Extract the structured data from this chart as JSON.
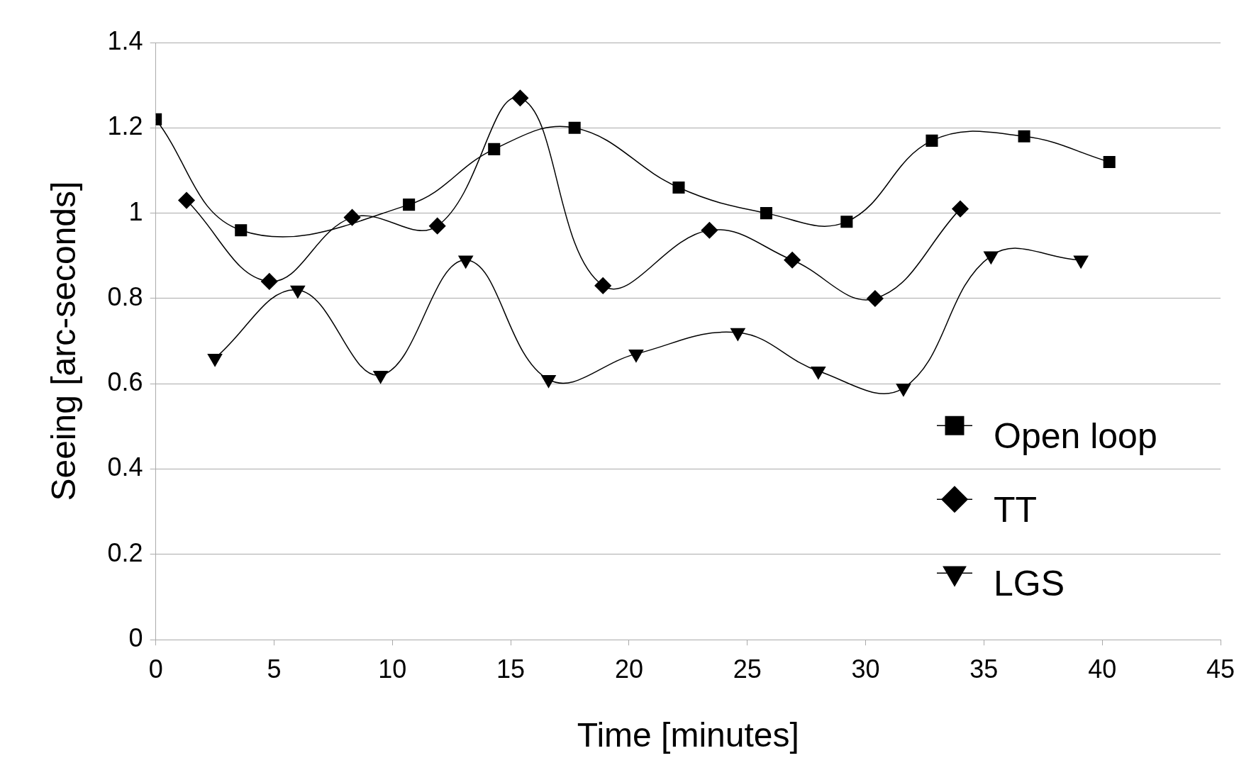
{
  "chart_data": {
    "type": "line",
    "xlabel": "Time [minutes]",
    "ylabel": "Seeing [arc-seconds]",
    "xlim": [
      0,
      45
    ],
    "xticks": [
      0,
      5,
      10,
      15,
      20,
      25,
      30,
      35,
      40,
      45
    ],
    "ylim": [
      0,
      1.4
    ],
    "yticks": [
      0,
      0.2,
      0.4,
      0.6,
      0.8,
      1,
      1.2,
      1.4
    ],
    "grid": "y",
    "legend": "bottom right",
    "series": [
      {
        "name": "Open loop",
        "color": "#000000",
        "marker": "square",
        "x": [
          0,
          3.6,
          10.7,
          14.3,
          17.7,
          22.1,
          25.8,
          29.2,
          32.8,
          36.7,
          40.3
        ],
        "values": [
          1.22,
          0.96,
          1.02,
          1.15,
          1.2,
          1.06,
          1.0,
          0.98,
          1.17,
          1.18,
          1.12
        ]
      },
      {
        "name": "TT",
        "color": "#000000",
        "marker": "diamond",
        "x": [
          1.3,
          4.8,
          8.3,
          11.9,
          15.4,
          18.9,
          23.4,
          26.9,
          30.4,
          34.0
        ],
        "values": [
          1.03,
          0.84,
          0.99,
          0.97,
          1.27,
          0.83,
          0.96,
          0.89,
          0.8,
          1.01
        ]
      },
      {
        "name": "LGS",
        "color": "#000000",
        "marker": "triangle",
        "x": [
          2.5,
          6.0,
          9.5,
          13.1,
          16.6,
          20.3,
          24.6,
          28.0,
          31.6,
          35.3,
          39.1
        ],
        "values": [
          0.66,
          0.82,
          0.62,
          0.89,
          0.61,
          0.67,
          0.72,
          0.63,
          0.59,
          0.9,
          0.89
        ]
      }
    ]
  }
}
